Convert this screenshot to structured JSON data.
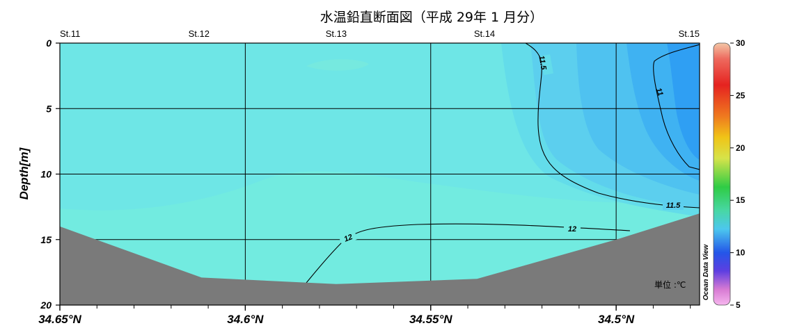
{
  "chart_data": {
    "type": "heatmap",
    "title": "水温鉛直断面図（平成 29年 1 月分）",
    "ylabel": "Depth[m]",
    "ylim": [
      0,
      20
    ],
    "y_inverted": true,
    "yticks": [
      "0",
      "5",
      "10",
      "15",
      "20"
    ],
    "xlim": [
      34.65,
      34.4775
    ],
    "x_inverted": true,
    "xticks": [
      "34.65°N",
      "34.6°N",
      "34.55°N",
      "34.5°N"
    ],
    "stations": [
      {
        "name": "St.11",
        "lat": 34.65
      },
      {
        "name": "St.12",
        "lat": 34.6125
      },
      {
        "name": "St.13",
        "lat": 34.5755
      },
      {
        "name": "St.14",
        "lat": 34.5355
      },
      {
        "name": "St.15",
        "lat": 34.4775
      }
    ],
    "colorbar": {
      "min": 5,
      "max": 30,
      "ticks": [
        "30",
        "25",
        "20",
        "15",
        "10",
        "5"
      ],
      "label": "Ocean Data View"
    },
    "contours": [
      {
        "label": "12",
        "value": 12
      },
      {
        "label": "11.5",
        "value": 11.5
      },
      {
        "label": "11",
        "value": 11
      }
    ],
    "seafloor_depth": [
      {
        "lat": 34.65,
        "depth": 14.0
      },
      {
        "lat": 34.6118,
        "depth": 17.9
      },
      {
        "lat": 34.5755,
        "depth": 18.4
      },
      {
        "lat": 34.5375,
        "depth": 18.0
      },
      {
        "lat": 34.5,
        "depth": 15.0
      },
      {
        "lat": 34.4775,
        "depth": 13.0
      }
    ],
    "unit_label": "単位 :℃"
  }
}
